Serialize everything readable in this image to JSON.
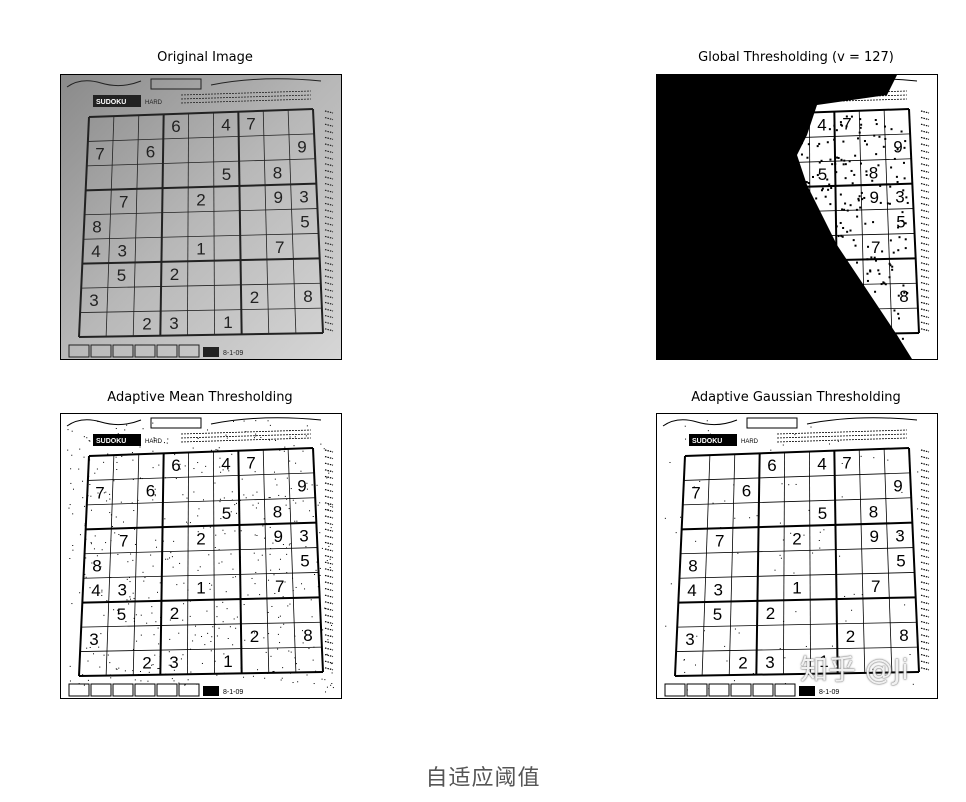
{
  "panels": {
    "original": {
      "title": "Original Image"
    },
    "global": {
      "title": "Global Thresholding (v = 127)"
    },
    "adaptive_mean": {
      "title": "Adaptive Mean Thresholding"
    },
    "adaptive_gaussian": {
      "title": "Adaptive Gaussian Thresholding"
    }
  },
  "puzzle": {
    "header_label": "SUDOKU",
    "difficulty_label": "HARD",
    "date_label": "8-1-09",
    "rows": [
      [
        "",
        "",
        "",
        "6",
        "",
        "4",
        "7",
        "",
        ""
      ],
      [
        "7",
        "",
        "6",
        "",
        "",
        "",
        "",
        "",
        "9"
      ],
      [
        "",
        "",
        "",
        "",
        "",
        "5",
        "",
        "8",
        ""
      ],
      [
        "",
        "7",
        "",
        "",
        "2",
        "",
        "",
        "9",
        "3"
      ],
      [
        "8",
        "",
        "",
        "",
        "",
        "",
        "",
        "",
        "5"
      ],
      [
        "4",
        "3",
        "",
        "",
        "1",
        "",
        "",
        "7",
        ""
      ],
      [
        "",
        "5",
        "",
        "2",
        "",
        "",
        "",
        "",
        ""
      ],
      [
        "3",
        "",
        "",
        "",
        "",
        "",
        "2",
        "",
        "8"
      ],
      [
        "",
        "",
        "2",
        "3",
        "",
        "1",
        "",
        "",
        ""
      ]
    ]
  },
  "caption": "自适应阈值",
  "watermark": "知乎 @Ji"
}
